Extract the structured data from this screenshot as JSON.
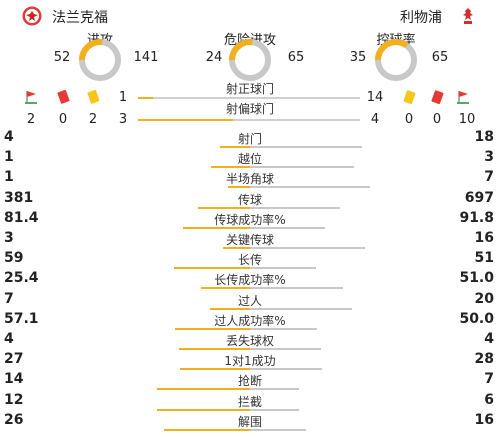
{
  "header": {
    "home_team": "法兰克福",
    "away_team": "利物浦",
    "home_logo_icon": "eintracht-eagle-icon",
    "away_logo_icon": "liverpool-liverbird-icon"
  },
  "donuts": [
    {
      "title": "进攻",
      "home": "52",
      "away": "141",
      "home_value": 52,
      "away_value": 141
    },
    {
      "title": "危险进攻",
      "home": "24",
      "away": "65",
      "home_value": 24,
      "away_value": 65
    },
    {
      "title": "控球率",
      "home": "35",
      "away": "65",
      "home_value": 35,
      "away_value": 65
    }
  ],
  "shots_on": {
    "title": "射正球门",
    "home": "1",
    "away": "14",
    "home_value": 1,
    "away_value": 14
  },
  "shots_off": {
    "title": "射偏球门",
    "home": "3",
    "away": "4",
    "home_value": 3,
    "away_value": 4
  },
  "home_cards": {
    "corners": "2",
    "red": "0",
    "yellow": "2"
  },
  "away_cards": {
    "yellow": "0",
    "red": "0",
    "corners": "10"
  },
  "stats": [
    {
      "label": "射门",
      "home": "4",
      "away": "18",
      "home_value": 4,
      "away_value": 18
    },
    {
      "label": "越位",
      "home": "1",
      "away": "3",
      "home_value": 1,
      "away_value": 3
    },
    {
      "label": "半场角球",
      "home": "1",
      "away": "7",
      "home_value": 1,
      "away_value": 7
    },
    {
      "label": "传球",
      "home": "381",
      "away": "697",
      "home_value": 381,
      "away_value": 697
    },
    {
      "label": "传球成功率%",
      "home": "81.4",
      "away": "91.8",
      "home_value": 81.4,
      "away_value": 91.8
    },
    {
      "label": "关键传球",
      "home": "3",
      "away": "16",
      "home_value": 3,
      "away_value": 16
    },
    {
      "label": "长传",
      "home": "59",
      "away": "51",
      "home_value": 59,
      "away_value": 51
    },
    {
      "label": "长传成功率%",
      "home": "25.4",
      "away": "51.0",
      "home_value": 25.4,
      "away_value": 51.0
    },
    {
      "label": "过人",
      "home": "7",
      "away": "20",
      "home_value": 7,
      "away_value": 20
    },
    {
      "label": "过人成功率%",
      "home": "57.1",
      "away": "50.0",
      "home_value": 57.1,
      "away_value": 50.0
    },
    {
      "label": "丢失球权",
      "home": "4",
      "away": "4",
      "home_value": 4,
      "away_value": 4
    },
    {
      "label": "1对1成功",
      "home": "27",
      "away": "28",
      "home_value": 27,
      "away_value": 28
    },
    {
      "label": "抢断",
      "home": "14",
      "away": "7",
      "home_value": 14,
      "away_value": 7
    },
    {
      "label": "拦截",
      "home": "12",
      "away": "6",
      "home_value": 12,
      "away_value": 6
    },
    {
      "label": "解围",
      "home": "26",
      "away": "16",
      "home_value": 26,
      "away_value": 16
    }
  ],
  "colors": {
    "home": "#f2b01e",
    "away": "#c8c8c8",
    "red_card": "#e53935",
    "yellow_card": "#f5c518",
    "corner_flag": "#e53935"
  }
}
